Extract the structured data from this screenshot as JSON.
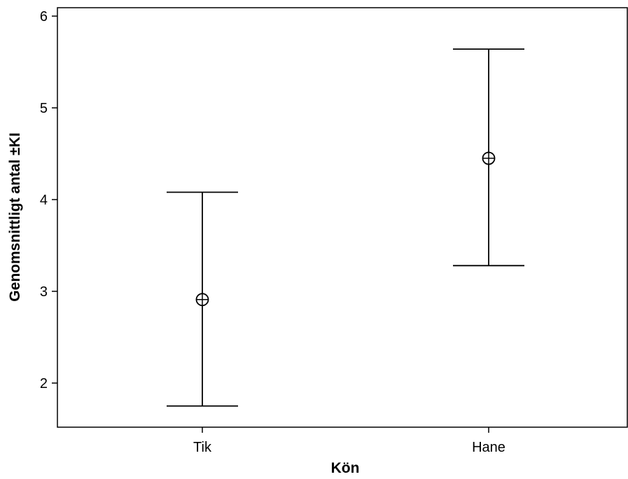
{
  "chart_data": {
    "type": "errorbar",
    "title": "",
    "xlabel": "Kön",
    "ylabel": "Genomsnittligt antal ±KI",
    "categories": [
      "Tik",
      "Hane"
    ],
    "series": [
      {
        "values": [
          2.91,
          4.45
        ],
        "ci_lower": [
          1.75,
          3.28
        ],
        "ci_upper": [
          4.08,
          5.64
        ]
      }
    ],
    "ylim": [
      1.5,
      6.0
    ],
    "yticks": [
      2,
      3,
      4,
      5,
      6
    ],
    "grid": false,
    "legend": "none",
    "colors": {
      "line": "#000000",
      "background": "#ffffff"
    },
    "marker": "circle-plus"
  }
}
